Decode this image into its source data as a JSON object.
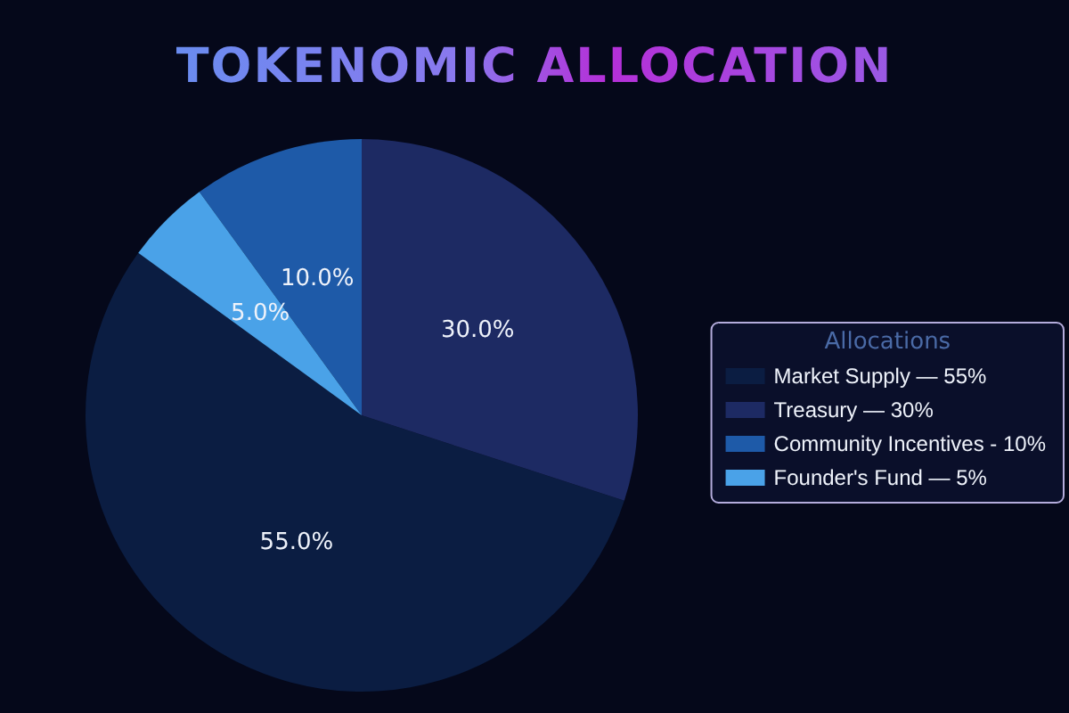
{
  "chart_data": {
    "type": "pie",
    "title": "TOKENOMIC ALLOCATION",
    "legend_title": "Allocations",
    "categories": [
      "Market Supply — 55%",
      "Treasury — 30%",
      "Community Incentives - 10%",
      "Founder's Fund — 5%"
    ],
    "values": [
      55,
      30,
      10,
      5
    ],
    "colors": [
      "#0b1d42",
      "#1d2a63",
      "#1e5aa8",
      "#4aa2e8"
    ],
    "value_labels": [
      "55.0%",
      "30.0%",
      "10.0%",
      "5.0%"
    ],
    "legend": "right"
  }
}
